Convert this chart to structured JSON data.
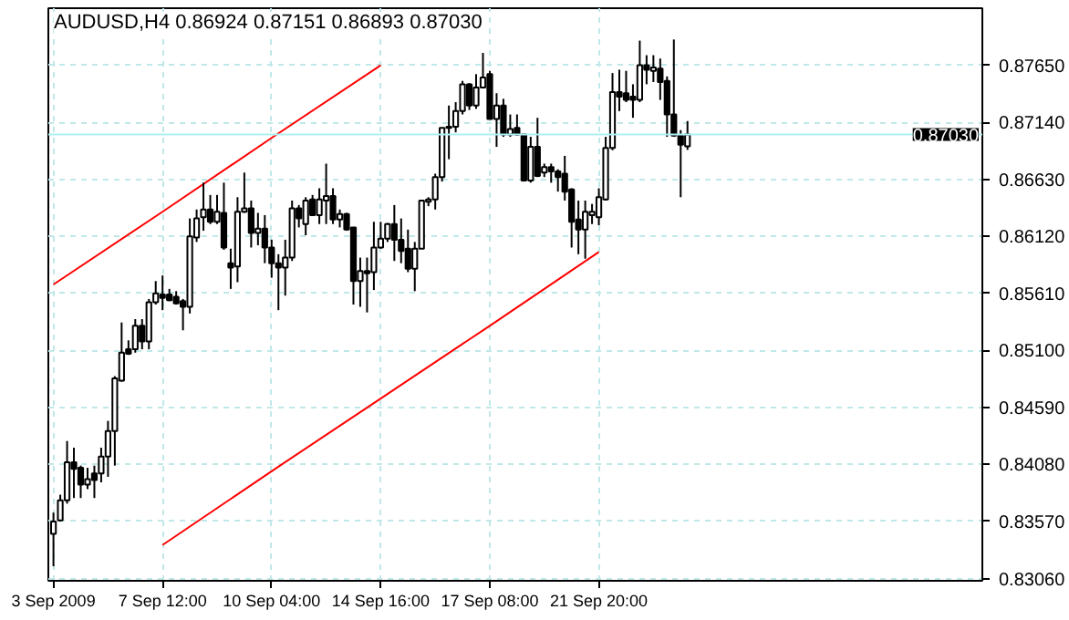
{
  "chart_data": {
    "type": "candlestick",
    "title": "AUDUSD,H4  0.86924 0.87151 0.86893 0.87030",
    "color": "#000000",
    "categories": [
      "3 Sep 2009",
      null,
      null,
      null,
      null,
      null,
      null,
      null,
      null,
      null,
      null,
      null,
      null,
      null,
      null,
      null,
      "7 Sep 12:00",
      null,
      null,
      null,
      null,
      null,
      null,
      null,
      null,
      null,
      null,
      null,
      null,
      null,
      null,
      null,
      "10 Sep 04:00",
      null,
      null,
      null,
      null,
      null,
      null,
      null,
      null,
      null,
      null,
      null,
      null,
      null,
      null,
      null,
      "14 Sep 16:00",
      null,
      null,
      null,
      null,
      null,
      null,
      null,
      null,
      null,
      null,
      null,
      null,
      null,
      null,
      null,
      "17 Sep 08:00",
      null,
      null,
      null,
      null,
      null,
      null,
      null,
      null,
      null,
      null,
      null,
      null,
      null,
      null,
      null,
      "21 Sep 20:00",
      null,
      null,
      null,
      null,
      null,
      null,
      null,
      null,
      null,
      null,
      null,
      null,
      null,
      null,
      null,
      null,
      null,
      null,
      null,
      null,
      null,
      null,
      null,
      null,
      null,
      null,
      null,
      null,
      null,
      null,
      null,
      null,
      null,
      null,
      null,
      null,
      null,
      null,
      null,
      null,
      null,
      null,
      null,
      null,
      null,
      null,
      null,
      null,
      null,
      null,
      null,
      null,
      null,
      null,
      null,
      null
    ],
    "ohlc": [
      [
        0.8346,
        0.8365,
        0.8317,
        0.8357
      ],
      [
        0.8358,
        0.8381,
        0.8357,
        0.8376
      ],
      [
        0.8376,
        0.8429,
        0.8373,
        0.841
      ],
      [
        0.841,
        0.8423,
        0.8378,
        0.8404
      ],
      [
        0.8405,
        0.8407,
        0.8378,
        0.839
      ],
      [
        0.839,
        0.8405,
        0.8386,
        0.8395
      ],
      [
        0.84,
        0.8407,
        0.8378,
        0.8394
      ],
      [
        0.84,
        0.8423,
        0.8392,
        0.8415
      ],
      [
        0.8415,
        0.8447,
        0.8397,
        0.8438
      ],
      [
        0.8438,
        0.8487,
        0.8407,
        0.8485
      ],
      [
        0.8483,
        0.8535,
        0.8482,
        0.8508
      ],
      [
        0.8511,
        0.8519,
        0.8506,
        0.8507
      ],
      [
        0.8511,
        0.8538,
        0.8508,
        0.8532
      ],
      [
        0.8532,
        0.8538,
        0.8511,
        0.8518
      ],
      [
        0.8518,
        0.8556,
        0.8511,
        0.8553
      ],
      [
        0.8553,
        0.8572,
        0.8551,
        0.8561
      ],
      [
        0.856,
        0.8577,
        0.8546,
        0.8557
      ],
      [
        0.856,
        0.8565,
        0.8554,
        0.8555
      ],
      [
        0.8558,
        0.8563,
        0.8551,
        0.8552
      ],
      [
        0.8554,
        0.8556,
        0.8528,
        0.8549
      ],
      [
        0.8549,
        0.8628,
        0.8543,
        0.8612
      ],
      [
        0.8611,
        0.8636,
        0.8607,
        0.8628
      ],
      [
        0.8629,
        0.866,
        0.8617,
        0.8636
      ],
      [
        0.8636,
        0.8649,
        0.8623,
        0.8625
      ],
      [
        0.8625,
        0.8649,
        0.8623,
        0.8634
      ],
      [
        0.8633,
        0.866,
        0.86,
        0.8602
      ],
      [
        0.8588,
        0.8601,
        0.8565,
        0.8584
      ],
      [
        0.8585,
        0.8647,
        0.8571,
        0.8634
      ],
      [
        0.8634,
        0.8669,
        0.8633,
        0.8637
      ],
      [
        0.8637,
        0.8644,
        0.8602,
        0.8615
      ],
      [
        0.8615,
        0.8633,
        0.8604,
        0.8619
      ],
      [
        0.8619,
        0.8631,
        0.8588,
        0.8602
      ],
      [
        0.8602,
        0.8609,
        0.8575,
        0.8588
      ],
      [
        0.8588,
        0.8596,
        0.8546,
        0.8584
      ],
      [
        0.8584,
        0.8609,
        0.8559,
        0.8593
      ],
      [
        0.8593,
        0.8644,
        0.859,
        0.8637
      ],
      [
        0.8637,
        0.864,
        0.862,
        0.8628
      ],
      [
        0.8623,
        0.8647,
        0.8613,
        0.8644
      ],
      [
        0.8645,
        0.8649,
        0.8631,
        0.8631
      ],
      [
        0.8631,
        0.8655,
        0.8623,
        0.8645
      ],
      [
        0.8644,
        0.8677,
        0.8623,
        0.8648
      ],
      [
        0.8648,
        0.8655,
        0.8623,
        0.8627
      ],
      [
        0.8627,
        0.8636,
        0.862,
        0.8632
      ],
      [
        0.8632,
        0.8633,
        0.8617,
        0.8618
      ],
      [
        0.862,
        0.862,
        0.8551,
        0.8572
      ],
      [
        0.8572,
        0.8593,
        0.8549,
        0.8581
      ],
      [
        0.8581,
        0.8593,
        0.8544,
        0.8579
      ],
      [
        0.858,
        0.8625,
        0.8564,
        0.8602
      ],
      [
        0.8602,
        0.8625,
        0.8601,
        0.861
      ],
      [
        0.861,
        0.8624,
        0.8607,
        0.8623
      ],
      [
        0.8623,
        0.864,
        0.859,
        0.8609
      ],
      [
        0.8609,
        0.8628,
        0.8588,
        0.8599
      ],
      [
        0.8601,
        0.8618,
        0.858,
        0.8583
      ],
      [
        0.8583,
        0.8607,
        0.8563,
        0.8601
      ],
      [
        0.8601,
        0.8644,
        0.8601,
        0.8644
      ],
      [
        0.8643,
        0.8647,
        0.8639,
        0.8645
      ],
      [
        0.8645,
        0.8668,
        0.8636,
        0.8665
      ],
      [
        0.8665,
        0.8709,
        0.8661,
        0.8709
      ],
      [
        0.8709,
        0.8729,
        0.8681,
        0.871
      ],
      [
        0.871,
        0.8732,
        0.8705,
        0.8724
      ],
      [
        0.8724,
        0.8751,
        0.8721,
        0.8748
      ],
      [
        0.8748,
        0.8749,
        0.8725,
        0.8729
      ],
      [
        0.8729,
        0.8757,
        0.8726,
        0.8745
      ],
      [
        0.8745,
        0.8776,
        0.8745,
        0.8754
      ],
      [
        0.8757,
        0.876,
        0.8717,
        0.8717
      ],
      [
        0.8717,
        0.874,
        0.8692,
        0.8729
      ],
      [
        0.8729,
        0.8735,
        0.8701,
        0.8703
      ],
      [
        0.8703,
        0.8721,
        0.8701,
        0.8708
      ],
      [
        0.8709,
        0.8721,
        0.8702,
        0.8703
      ],
      [
        0.8703,
        0.8703,
        0.8661,
        0.8662
      ],
      [
        0.8662,
        0.8701,
        0.866,
        0.8692
      ],
      [
        0.8692,
        0.8718,
        0.8665,
        0.8666
      ],
      [
        0.8669,
        0.8677,
        0.8665,
        0.8674
      ],
      [
        0.8674,
        0.8677,
        0.866,
        0.867
      ],
      [
        0.867,
        0.8672,
        0.8652,
        0.8665
      ],
      [
        0.8668,
        0.8684,
        0.8644,
        0.8652
      ],
      [
        0.8654,
        0.8655,
        0.8602,
        0.8625
      ],
      [
        0.8627,
        0.8644,
        0.8596,
        0.8618
      ],
      [
        0.8618,
        0.8644,
        0.8592,
        0.8634
      ],
      [
        0.8631,
        0.8641,
        0.8623,
        0.8634
      ],
      [
        0.8629,
        0.8655,
        0.8622,
        0.8647
      ],
      [
        0.8645,
        0.8701,
        0.8644,
        0.8691
      ],
      [
        0.8691,
        0.8758,
        0.8689,
        0.8741
      ],
      [
        0.8741,
        0.8761,
        0.8724,
        0.8737
      ],
      [
        0.874,
        0.876,
        0.8732,
        0.8734
      ],
      [
        0.8737,
        0.8748,
        0.8718,
        0.8734
      ],
      [
        0.8734,
        0.8787,
        0.8732,
        0.8765
      ],
      [
        0.8765,
        0.8774,
        0.8748,
        0.8761
      ],
      [
        0.876,
        0.8774,
        0.875,
        0.8763
      ],
      [
        0.8762,
        0.8771,
        0.8734,
        0.875
      ],
      [
        0.8751,
        0.8755,
        0.8701,
        0.8721
      ],
      [
        0.8721,
        0.8788,
        0.8701,
        0.8702
      ],
      [
        0.8702,
        0.8707,
        0.8647,
        0.8694
      ],
      [
        0.86924,
        0.87151,
        0.86893,
        0.8703
      ],
      null,
      null,
      null,
      null,
      null,
      null,
      null,
      null,
      null,
      null,
      null,
      null,
      null,
      null,
      null,
      null,
      null,
      null,
      null,
      null,
      null,
      null,
      null,
      null,
      null,
      null,
      null,
      null,
      null,
      null,
      null,
      null,
      null,
      null,
      null,
      null,
      null,
      null,
      null,
      null,
      null,
      null,
      null
    ],
    "series": [
      {
        "type": "line",
        "color": "#ff0000",
        "x": [
          "3 Sep 2009",
          "7 Sep 12:00",
          "10 Sep 04:00",
          "14 Sep 16:00"
        ],
        "values": [
          0.8569,
          0.8634,
          0.87,
          0.8765
        ]
      },
      {
        "type": "line",
        "color": "#ff0000",
        "x": [
          "7 Sep 12:00",
          "10 Sep 04:00",
          "14 Sep 16:00",
          "17 Sep 08:00",
          "21 Sep 20:00"
        ],
        "values": [
          0.8336,
          0.8402,
          0.8467,
          0.8532,
          0.8598
        ]
      }
    ],
    "ylim": [
      0.8304,
      0.8816
    ],
    "yticks": [
      {
        "value": 0.8306,
        "label": "0.83060"
      },
      {
        "value": 0.8357,
        "label": "0.83570"
      },
      {
        "value": 0.8408,
        "label": "0.84080"
      },
      {
        "value": 0.8459,
        "label": "0.84590"
      },
      {
        "value": 0.851,
        "label": "0.85100"
      },
      {
        "value": 0.8561,
        "label": "0.85610"
      },
      {
        "value": 0.8612,
        "label": "0.86120"
      },
      {
        "value": 0.8663,
        "label": "0.86630"
      },
      {
        "value": 0.8714,
        "label": "0.87140"
      },
      {
        "value": 0.8765,
        "label": "0.87650"
      }
    ],
    "ref_lines": [
      {
        "axis": "y",
        "value": 0.8703,
        "label": "0.87030",
        "color": "#b0f0f0"
      }
    ],
    "grid": true
  }
}
